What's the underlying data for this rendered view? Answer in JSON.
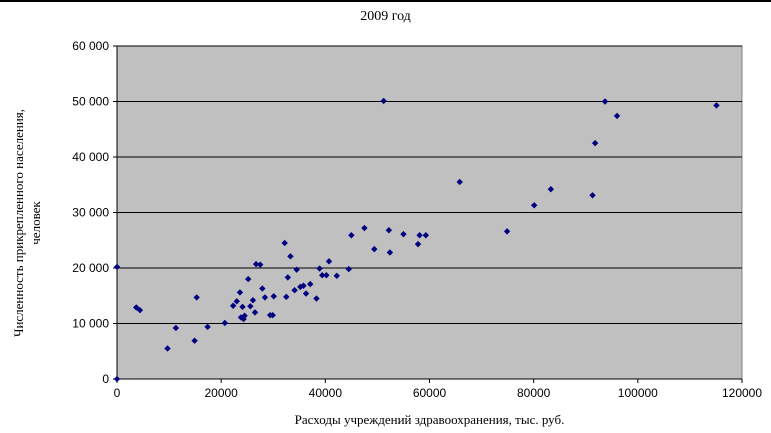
{
  "chart_data": {
    "type": "scatter",
    "title": "2009 год",
    "xlabel": "Расходы учреждений здравоохранения, тыс. руб.",
    "ylabel_lines": [
      "Численность прикрепленного населения,",
      "человек"
    ],
    "xlim": [
      0,
      120000
    ],
    "ylim": [
      0,
      60000
    ],
    "x_ticks": [
      0,
      20000,
      40000,
      60000,
      80000,
      100000,
      120000
    ],
    "x_tick_labels": [
      "0",
      "20000",
      "40000",
      "60000",
      "80000",
      "100000",
      "120000"
    ],
    "y_ticks": [
      0,
      10000,
      20000,
      30000,
      40000,
      50000,
      60000
    ],
    "y_tick_labels": [
      "0",
      "10 000",
      "20 000",
      "30 000",
      "40 000",
      "50 000",
      "60 000"
    ],
    "grid": {
      "horizontal": true,
      "vertical": false
    },
    "plot_background": "#c0c0c0",
    "marker_color": "#000080",
    "marker": "diamond",
    "points": [
      [
        0,
        0
      ],
      [
        0,
        20200
      ],
      [
        3700,
        12900
      ],
      [
        4400,
        12400
      ],
      [
        9700,
        5500
      ],
      [
        11300,
        9200
      ],
      [
        14900,
        6900
      ],
      [
        15300,
        14700
      ],
      [
        17400,
        9400
      ],
      [
        20700,
        10100
      ],
      [
        22300,
        13200
      ],
      [
        23000,
        14000
      ],
      [
        23600,
        15600
      ],
      [
        23800,
        11100
      ],
      [
        24100,
        13000
      ],
      [
        24300,
        10800
      ],
      [
        24500,
        11400
      ],
      [
        25200,
        18000
      ],
      [
        25600,
        13100
      ],
      [
        26100,
        14200
      ],
      [
        26500,
        12000
      ],
      [
        26700,
        20700
      ],
      [
        27500,
        20600
      ],
      [
        27900,
        16300
      ],
      [
        28400,
        14700
      ],
      [
        29400,
        11500
      ],
      [
        29900,
        11500
      ],
      [
        30100,
        14900
      ],
      [
        32200,
        24500
      ],
      [
        32500,
        14800
      ],
      [
        32800,
        18300
      ],
      [
        33300,
        22100
      ],
      [
        34100,
        16000
      ],
      [
        34500,
        19700
      ],
      [
        35200,
        16600
      ],
      [
        35800,
        16800
      ],
      [
        36300,
        15400
      ],
      [
        37100,
        17100
      ],
      [
        38300,
        14500
      ],
      [
        38900,
        19900
      ],
      [
        39400,
        18700
      ],
      [
        40200,
        18700
      ],
      [
        40700,
        21200
      ],
      [
        42200,
        18600
      ],
      [
        44500,
        19800
      ],
      [
        45000,
        25900
      ],
      [
        47500,
        27200
      ],
      [
        49400,
        23400
      ],
      [
        51200,
        50100
      ],
      [
        52200,
        26800
      ],
      [
        52400,
        22800
      ],
      [
        55000,
        26100
      ],
      [
        57800,
        24300
      ],
      [
        58100,
        25900
      ],
      [
        59300,
        25900
      ],
      [
        65800,
        35500
      ],
      [
        74900,
        26600
      ],
      [
        80100,
        31300
      ],
      [
        83300,
        34200
      ],
      [
        91300,
        33100
      ],
      [
        91800,
        42500
      ],
      [
        93700,
        50000
      ],
      [
        96000,
        47400
      ],
      [
        115100,
        49300
      ]
    ]
  }
}
